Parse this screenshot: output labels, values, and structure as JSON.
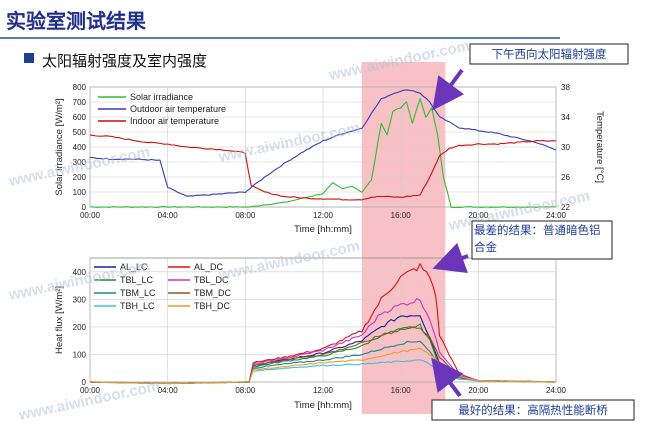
{
  "slide": {
    "title": "实验室测试结果",
    "subtitle": "太阳辐射强度及室内强度",
    "watermark": "www.aiwindoor.com",
    "accent_color": "#1f4e9c",
    "callouts": {
      "top": "下午西向太阳辐射强度",
      "worst": "最差的结果：普通暗色铝合金",
      "best": "最好的结果：高隔热性能断桥"
    },
    "highlight_color": "#f4a0a8"
  },
  "chart_data": [
    {
      "type": "line",
      "xlabel": "Time [hh:mm]",
      "ylabel": "Solar irradiance [W/m²]",
      "y2label": "Temperature [°C]",
      "xticks": [
        "00:00",
        "04:00",
        "08:00",
        "12:00",
        "16:00",
        "20:00",
        "24:00"
      ],
      "xlim": [
        0,
        24
      ],
      "ylim": [
        0,
        800
      ],
      "y2lim": [
        22,
        38
      ],
      "yticks": [
        0,
        100,
        200,
        300,
        400,
        500,
        600,
        700,
        800
      ],
      "y2ticks": [
        22,
        26,
        30,
        34,
        38
      ],
      "grid": true,
      "legend_position": "top-left",
      "highlight_window": [
        14,
        18.3
      ],
      "series": [
        {
          "name": "Solar irradiance",
          "axis": "left",
          "color": "#33bb33",
          "x": [
            0,
            8.2,
            9,
            10,
            11,
            12,
            12.5,
            13,
            13.5,
            14,
            14.5,
            15,
            15.3,
            15.6,
            16,
            16.3,
            16.6,
            17,
            17.3,
            17.6,
            17.9,
            18.2,
            18.6,
            24
          ],
          "y": [
            0,
            0,
            15,
            30,
            60,
            90,
            160,
            120,
            140,
            100,
            180,
            560,
            480,
            640,
            660,
            700,
            560,
            720,
            600,
            660,
            480,
            200,
            0,
            0
          ]
        },
        {
          "name": "Outdoor air temperature",
          "axis": "right",
          "color": "#3a3ab8",
          "x": [
            0,
            1,
            2,
            3,
            3.6,
            4,
            5,
            6,
            7,
            8,
            8.3,
            9,
            10,
            11,
            12,
            13,
            14,
            14.5,
            15,
            15.5,
            16,
            16.5,
            17,
            17.5,
            18,
            19,
            20,
            21,
            22,
            23,
            24
          ],
          "y": [
            28.6,
            28.4,
            28.4,
            28.3,
            28.2,
            24.6,
            23.4,
            23.6,
            23.8,
            24.0,
            24.6,
            26.0,
            27.8,
            29.4,
            30.8,
            31.8,
            32.5,
            34.5,
            36.4,
            37.0,
            37.5,
            37.6,
            37.2,
            36.0,
            34.0,
            32.6,
            32.2,
            31.8,
            31.2,
            30.6,
            29.6
          ]
        },
        {
          "name": "Indoor air temperature",
          "axis": "right",
          "color": "#cc1111",
          "x": [
            0,
            1,
            2,
            3,
            4,
            5,
            6,
            7,
            8,
            8.3,
            9,
            10,
            11,
            12,
            13,
            14,
            14.5,
            15,
            16,
            17,
            17.5,
            18,
            18.5,
            19,
            20,
            21,
            22,
            23,
            24
          ],
          "y": [
            31.6,
            31.4,
            31.0,
            30.6,
            30.4,
            30.0,
            29.8,
            29.6,
            29.2,
            24.8,
            24.0,
            23.4,
            23.2,
            23.1,
            23.0,
            23.0,
            23.3,
            23.4,
            23.3,
            23.6,
            26.0,
            28.8,
            29.8,
            30.2,
            30.4,
            30.4,
            30.6,
            30.8,
            30.8
          ]
        }
      ]
    },
    {
      "type": "line",
      "xlabel": "Time [hh:mm]",
      "ylabel": "Heat flux [W/m²]",
      "xticks": [
        "00:00",
        "04:00",
        "08:00",
        "12:00",
        "16:00",
        "20:00",
        "24:00"
      ],
      "xlim": [
        0,
        24
      ],
      "ylim": [
        0,
        450
      ],
      "yticks": [
        0,
        100,
        200,
        300,
        400
      ],
      "grid": true,
      "legend_position": "top-left",
      "highlight_window": [
        14,
        18.3
      ],
      "series": [
        {
          "name": "AL_LC",
          "color": "#1a1aa0",
          "x": [
            0,
            4,
            8.2,
            8.4,
            10,
            12,
            14,
            15,
            16,
            17,
            17.5,
            18,
            19,
            20,
            24
          ],
          "y": [
            0,
            -5,
            0,
            60,
            80,
            105,
            150,
            200,
            240,
            245,
            160,
            70,
            20,
            5,
            0
          ]
        },
        {
          "name": "AL_DC",
          "color": "#dd1111",
          "x": [
            0,
            4,
            8.2,
            8.4,
            10,
            12,
            14,
            15,
            16,
            17,
            17.5,
            17.8,
            18,
            19,
            20,
            24
          ],
          "y": [
            0,
            -5,
            0,
            70,
            90,
            120,
            185,
            300,
            380,
            420,
            380,
            320,
            170,
            30,
            5,
            0
          ]
        },
        {
          "name": "TBL_LC",
          "color": "#228833",
          "x": [
            0,
            4,
            8.2,
            8.4,
            10,
            12,
            14,
            15,
            16,
            17,
            17.5,
            18,
            19,
            20,
            24
          ],
          "y": [
            0,
            -5,
            0,
            55,
            75,
            95,
            130,
            170,
            190,
            205,
            150,
            60,
            15,
            5,
            0
          ]
        },
        {
          "name": "TBL_DC",
          "color": "#cc33cc",
          "x": [
            0,
            4,
            8.2,
            8.4,
            10,
            12,
            14,
            15,
            16,
            17,
            17.5,
            18,
            19,
            20,
            24
          ],
          "y": [
            0,
            -5,
            0,
            65,
            85,
            115,
            170,
            250,
            280,
            300,
            230,
            110,
            25,
            5,
            0
          ]
        },
        {
          "name": "TBM_LC",
          "color": "#1a8888",
          "x": [
            0,
            4,
            8.2,
            8.4,
            10,
            12,
            14,
            15,
            16,
            17,
            17.5,
            18,
            19,
            20,
            24
          ],
          "y": [
            0,
            -5,
            0,
            50,
            65,
            80,
            100,
            120,
            140,
            150,
            110,
            60,
            15,
            5,
            0
          ]
        },
        {
          "name": "TBM_DC",
          "color": "#8a5a20",
          "x": [
            0,
            4,
            8.2,
            8.4,
            10,
            12,
            14,
            15,
            16,
            17,
            17.5,
            18,
            19,
            20,
            24
          ],
          "y": [
            0,
            -5,
            0,
            60,
            80,
            100,
            140,
            170,
            190,
            200,
            160,
            90,
            20,
            5,
            0
          ]
        },
        {
          "name": "TBH_LC",
          "color": "#44bbdd",
          "x": [
            0,
            4,
            8.2,
            8.4,
            10,
            12,
            14,
            15,
            16,
            17,
            17.5,
            18,
            19,
            20,
            24
          ],
          "y": [
            0,
            -5,
            0,
            40,
            50,
            60,
            65,
            70,
            75,
            80,
            65,
            40,
            10,
            5,
            0
          ]
        },
        {
          "name": "TBH_DC",
          "color": "#ee9933",
          "x": [
            0,
            4,
            8.2,
            8.4,
            10,
            12,
            14,
            15,
            16,
            17,
            17.5,
            18,
            19,
            20,
            24
          ],
          "y": [
            0,
            -5,
            0,
            45,
            55,
            70,
            80,
            95,
            110,
            120,
            100,
            70,
            20,
            5,
            0
          ]
        }
      ]
    }
  ]
}
